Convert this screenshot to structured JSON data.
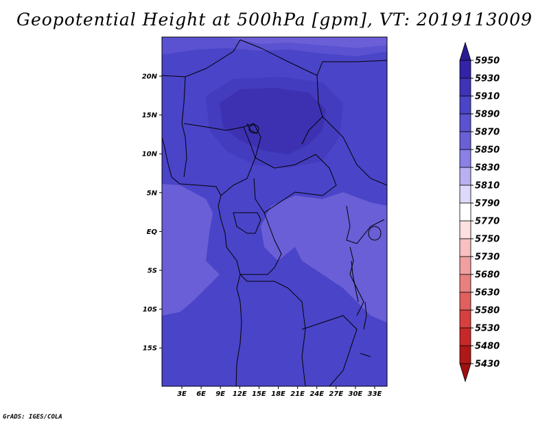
{
  "title": "Geopotential Height at 500hPa [gpm], VT: 2019113009",
  "credit": "GrADS: IGES/COLA",
  "map": {
    "lat_labels": [
      "20N",
      "15N",
      "10N",
      "5N",
      "EQ",
      "5S",
      "10S",
      "15S"
    ],
    "lon_labels": [
      "3E",
      "6E",
      "9E",
      "12E",
      "15E",
      "18E",
      "21E",
      "24E",
      "27E",
      "30E",
      "33E"
    ],
    "field_colors": {
      "5870": "#4a44c8",
      "5890": "#3f33b8",
      "5910": "#3a2aaa",
      "5850": "#6a5fd6",
      "5830": "#8a80e6"
    }
  },
  "colorbar": {
    "levels": [
      "5950",
      "5930",
      "5910",
      "5890",
      "5870",
      "5850",
      "5830",
      "5810",
      "5790",
      "5770",
      "5750",
      "5730",
      "5680",
      "5630",
      "5580",
      "5530",
      "5480",
      "5430"
    ],
    "colors": [
      "#2a1a96",
      "#3423a6",
      "#3f33b8",
      "#4a44c8",
      "#5a52d0",
      "#6a5fd6",
      "#8a80e6",
      "#b8b0f2",
      "#dcdaf8",
      "#ffffff",
      "#fde0e0",
      "#f8c0c0",
      "#f0a0a0",
      "#e88080",
      "#e06060",
      "#d84040",
      "#c82828",
      "#b01818",
      "#a01010"
    ]
  }
}
